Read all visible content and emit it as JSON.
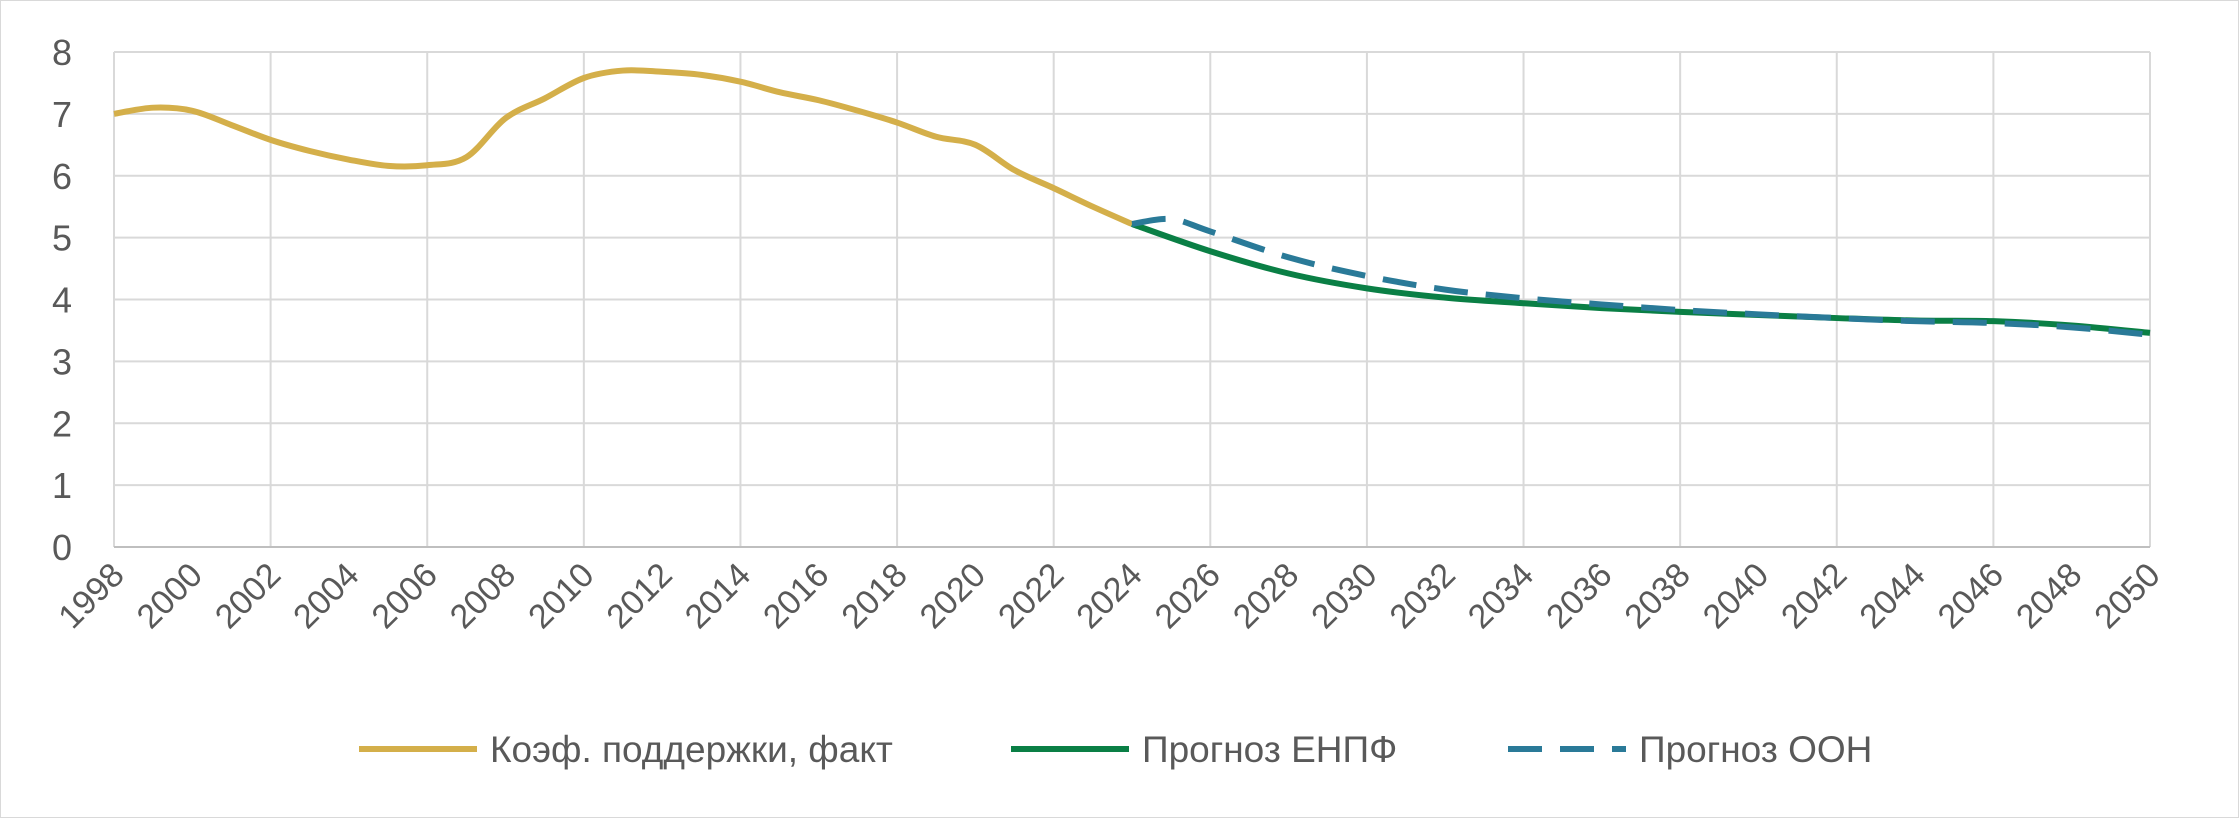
{
  "chart_data": {
    "type": "line",
    "ylim": [
      0,
      8
    ],
    "xlim": [
      1998,
      2050
    ],
    "y_ticks": [
      "0",
      "1",
      "2",
      "3",
      "4",
      "5",
      "6",
      "7",
      "8"
    ],
    "x_ticks": [
      "1998",
      "2000",
      "2002",
      "2004",
      "2006",
      "2008",
      "2010",
      "2012",
      "2014",
      "2016",
      "2018",
      "2020",
      "2022",
      "2024",
      "2026",
      "2028",
      "2030",
      "2032",
      "2034",
      "2036",
      "2038",
      "2040",
      "2042",
      "2044",
      "2046",
      "2048",
      "2050"
    ],
    "grid": true,
    "legend_position": "bottom",
    "series": [
      {
        "name": "Коэф. поддержки, факт",
        "color": "#d4af4a",
        "dash": "solid",
        "x": [
          1998,
          1999,
          2000,
          2001,
          2002,
          2003,
          2004,
          2005,
          2006,
          2007,
          2008,
          2009,
          2010,
          2011,
          2012,
          2013,
          2014,
          2015,
          2016,
          2017,
          2018,
          2019,
          2020,
          2021,
          2022,
          2023,
          2024
        ],
        "y": [
          7.0,
          7.1,
          7.05,
          6.82,
          6.58,
          6.4,
          6.26,
          6.16,
          6.17,
          6.3,
          6.93,
          7.25,
          7.58,
          7.7,
          7.68,
          7.63,
          7.52,
          7.35,
          7.22,
          7.05,
          6.86,
          6.63,
          6.5,
          6.09,
          5.8,
          5.5,
          5.22
        ]
      },
      {
        "name": "Прогноз ЕНПФ",
        "color": "#0a7f45",
        "dash": "solid",
        "x": [
          2024,
          2026,
          2028,
          2030,
          2032,
          2034,
          2036,
          2038,
          2040,
          2042,
          2044,
          2046,
          2048,
          2050
        ],
        "y": [
          5.22,
          4.78,
          4.42,
          4.18,
          4.03,
          3.94,
          3.86,
          3.8,
          3.75,
          3.7,
          3.66,
          3.65,
          3.58,
          3.46
        ]
      },
      {
        "name": "Прогноз ООН",
        "color": "#2a7a98",
        "dash": "dashed",
        "x": [
          2024,
          2025,
          2026,
          2028,
          2030,
          2032,
          2034,
          2036,
          2038,
          2040,
          2042,
          2044,
          2046,
          2048,
          2050
        ],
        "y": [
          5.22,
          5.3,
          5.1,
          4.68,
          4.38,
          4.16,
          4.02,
          3.92,
          3.83,
          3.76,
          3.7,
          3.65,
          3.62,
          3.55,
          3.43
        ]
      }
    ]
  }
}
